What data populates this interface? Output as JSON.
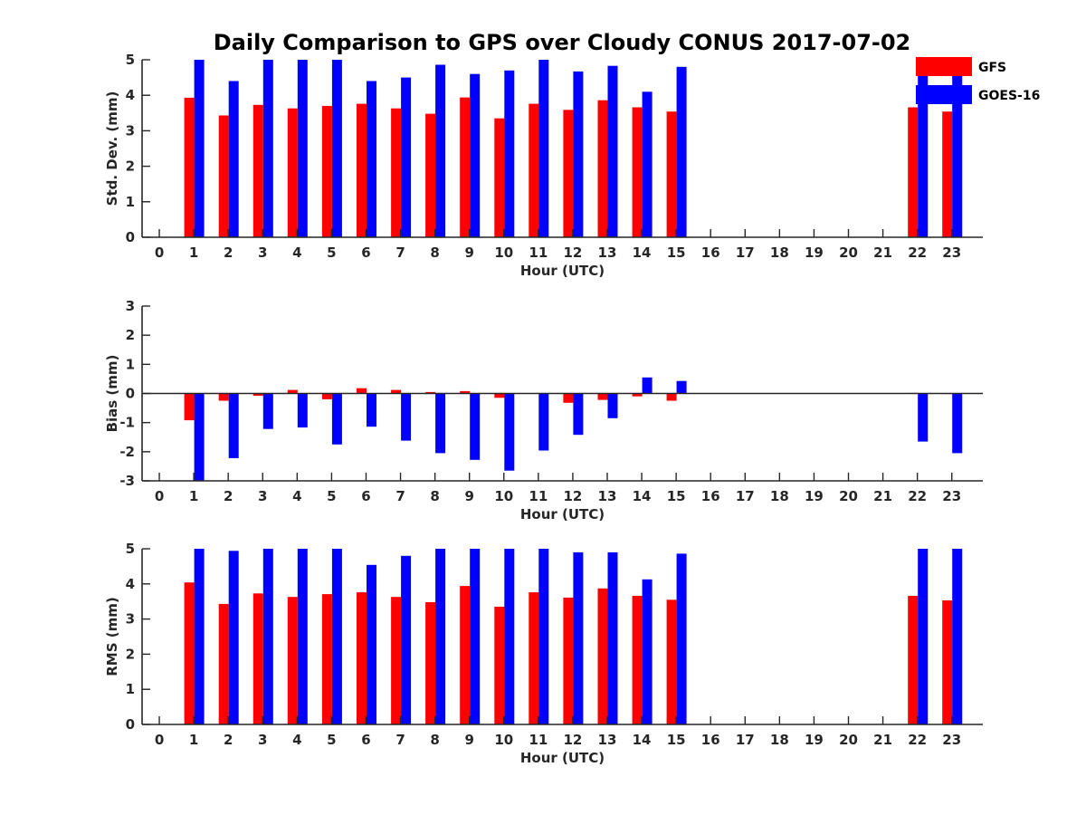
{
  "colors": {
    "GFS": "#ff0000",
    "GOES-16": "#0000ff",
    "axis": "#262626"
  },
  "chart_data": [
    {
      "type": "bar",
      "title": "Daily Comparison to GPS over Cloudy CONUS 2017-07-02",
      "xlabel": "Hour (UTC)",
      "ylabel": "Std. Dev. (mm)",
      "categories": [
        "0",
        "1",
        "2",
        "3",
        "4",
        "5",
        "6",
        "7",
        "8",
        "9",
        "10",
        "11",
        "12",
        "13",
        "14",
        "15",
        "16",
        "17",
        "18",
        "19",
        "20",
        "21",
        "22",
        "23"
      ],
      "ylim": [
        0,
        5
      ],
      "yticks": [
        "0",
        "1",
        "2",
        "3",
        "4",
        "5"
      ],
      "legend": {
        "position": "top-right",
        "entries": [
          "GFS",
          "GOES-16"
        ]
      },
      "series": [
        {
          "name": "GFS",
          "values": [
            null,
            3.93,
            3.43,
            3.73,
            3.63,
            3.7,
            3.76,
            3.63,
            3.48,
            3.94,
            3.35,
            3.76,
            3.59,
            3.86,
            3.66,
            3.54,
            null,
            null,
            null,
            null,
            null,
            null,
            3.66,
            3.54
          ]
        },
        {
          "name": "GOES-16",
          "values": [
            null,
            5.0,
            4.4,
            5.0,
            5.0,
            5.0,
            4.4,
            4.5,
            4.86,
            4.6,
            4.7,
            5.0,
            4.67,
            4.83,
            4.1,
            4.8,
            null,
            null,
            null,
            null,
            null,
            null,
            5.0,
            5.0
          ]
        }
      ]
    },
    {
      "type": "bar",
      "title": "",
      "xlabel": "Hour (UTC)",
      "ylabel": "Bias (mm)",
      "categories": [
        "0",
        "1",
        "2",
        "3",
        "4",
        "5",
        "6",
        "7",
        "8",
        "9",
        "10",
        "11",
        "12",
        "13",
        "14",
        "15",
        "16",
        "17",
        "18",
        "19",
        "20",
        "21",
        "22",
        "23"
      ],
      "ylim": [
        -3,
        3
      ],
      "yticks": [
        "-3",
        "-2",
        "-1",
        "0",
        "1",
        "2",
        "3"
      ],
      "series": [
        {
          "name": "GFS",
          "values": [
            null,
            -0.92,
            -0.25,
            -0.08,
            0.12,
            -0.2,
            0.18,
            0.12,
            0.05,
            0.08,
            -0.15,
            0.0,
            -0.32,
            -0.22,
            -0.1,
            -0.25,
            null,
            null,
            null,
            null,
            null,
            null,
            0.02,
            -0.02
          ]
        },
        {
          "name": "GOES-16",
          "values": [
            null,
            -3.0,
            -2.22,
            -1.22,
            -1.17,
            -1.75,
            -1.14,
            -1.62,
            -2.05,
            -2.28,
            -2.65,
            -1.96,
            -1.42,
            -0.85,
            0.55,
            0.43,
            null,
            null,
            null,
            null,
            null,
            null,
            -1.65,
            -2.05
          ]
        }
      ]
    },
    {
      "type": "bar",
      "title": "",
      "xlabel": "Hour (UTC)",
      "ylabel": "RMS (mm)",
      "categories": [
        "0",
        "1",
        "2",
        "3",
        "4",
        "5",
        "6",
        "7",
        "8",
        "9",
        "10",
        "11",
        "12",
        "13",
        "14",
        "15",
        "16",
        "17",
        "18",
        "19",
        "20",
        "21",
        "22",
        "23"
      ],
      "ylim": [
        0,
        5
      ],
      "yticks": [
        "0",
        "1",
        "2",
        "3",
        "4",
        "5"
      ],
      "series": [
        {
          "name": "GFS",
          "values": [
            null,
            4.04,
            3.43,
            3.73,
            3.63,
            3.71,
            3.76,
            3.63,
            3.48,
            3.94,
            3.35,
            3.76,
            3.61,
            3.87,
            3.66,
            3.55,
            null,
            null,
            null,
            null,
            null,
            null,
            3.66,
            3.53
          ]
        },
        {
          "name": "GOES-16",
          "values": [
            null,
            5.0,
            4.94,
            5.0,
            5.0,
            5.0,
            4.54,
            4.8,
            5.0,
            5.0,
            5.0,
            5.0,
            4.9,
            4.9,
            4.13,
            4.86,
            null,
            null,
            null,
            null,
            null,
            null,
            5.0,
            5.0
          ]
        }
      ]
    }
  ]
}
